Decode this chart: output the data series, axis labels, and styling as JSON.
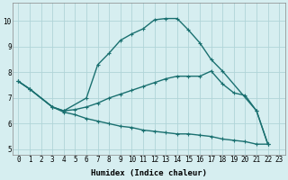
{
  "xlabel": "Humidex (Indice chaleur)",
  "background_color": "#d6eef0",
  "grid_color": "#b0d4d8",
  "line_color": "#1a7070",
  "xlim": [
    -0.5,
    23.5
  ],
  "ylim": [
    4.8,
    10.7
  ],
  "xticks": [
    0,
    1,
    2,
    3,
    4,
    5,
    6,
    7,
    8,
    9,
    10,
    11,
    12,
    13,
    14,
    15,
    16,
    17,
    18,
    19,
    20,
    21,
    22,
    23
  ],
  "yticks": [
    5,
    6,
    7,
    8,
    9,
    10
  ],
  "curve_top_x": [
    0,
    1,
    3,
    4,
    6,
    7,
    8,
    9,
    10,
    11,
    12,
    13,
    14,
    15,
    16,
    17,
    18,
    21,
    22
  ],
  "curve_top_y": [
    7.65,
    7.35,
    6.65,
    6.5,
    7.0,
    8.3,
    8.75,
    9.25,
    9.5,
    9.7,
    10.05,
    10.1,
    10.1,
    9.65,
    9.15,
    8.5,
    8.05,
    6.5,
    5.2
  ],
  "curve_mid_x": [
    0,
    1,
    3,
    4,
    5,
    6,
    7,
    8,
    9,
    10,
    11,
    12,
    13,
    14,
    15,
    16,
    17,
    18,
    19,
    20,
    21,
    22
  ],
  "curve_mid_y": [
    7.65,
    7.35,
    6.65,
    6.5,
    6.55,
    6.65,
    6.8,
    7.0,
    7.15,
    7.3,
    7.45,
    7.6,
    7.75,
    7.85,
    7.85,
    7.85,
    8.05,
    7.55,
    7.2,
    7.1,
    6.5,
    5.2
  ],
  "curve_bot_x": [
    0,
    1,
    3,
    4,
    5,
    6,
    7,
    8,
    9,
    10,
    11,
    12,
    13,
    14,
    15,
    16,
    17,
    18,
    19,
    20,
    21,
    22
  ],
  "curve_bot_y": [
    7.65,
    7.35,
    6.65,
    6.45,
    6.35,
    6.2,
    6.1,
    6.0,
    5.9,
    5.85,
    5.75,
    5.7,
    5.65,
    5.6,
    5.6,
    5.55,
    5.5,
    5.4,
    5.35,
    5.3,
    5.2,
    5.2
  ],
  "marker": "+",
  "markersize": 3,
  "linewidth": 1.0
}
